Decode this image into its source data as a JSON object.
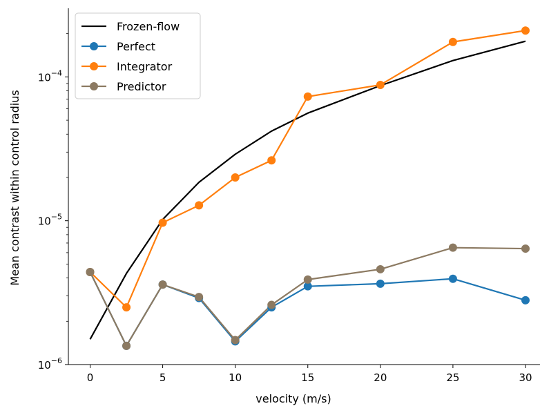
{
  "chart_data": {
    "type": "line",
    "xlabel": "velocity (m/s)",
    "ylabel": "Mean contrast within control radius",
    "xlim": [
      -1.5,
      31
    ],
    "ylim": [
      1e-06,
      0.0003
    ],
    "yscale": "log",
    "x_ticks": [
      0,
      5,
      10,
      15,
      20,
      25,
      30
    ],
    "x_tick_labels": [
      "0",
      "5",
      "10",
      "15",
      "20",
      "25",
      "30"
    ],
    "y_ticks": [
      {
        "value": 1e-06,
        "base": "10",
        "exp": "−6"
      },
      {
        "value": 1e-05,
        "base": "10",
        "exp": "−5"
      },
      {
        "value": 0.0001,
        "base": "10",
        "exp": "−4"
      }
    ],
    "grid": false,
    "legend_position": "upper-left",
    "series": [
      {
        "name": "Frozen-flow",
        "color": "#000000",
        "marker": false,
        "x": [
          0,
          2.5,
          5,
          7.5,
          10,
          12.5,
          15,
          20,
          25,
          30
        ],
        "y": [
          1.5e-06,
          4.3e-06,
          1.02e-05,
          1.85e-05,
          2.9e-05,
          4.2e-05,
          5.6e-05,
          8.7e-05,
          0.00013,
          0.000177
        ]
      },
      {
        "name": "Perfect",
        "color": "#1f77b4",
        "marker": true,
        "x": [
          0,
          2.5,
          5,
          7.5,
          10,
          12.5,
          15,
          20,
          25,
          30
        ],
        "y": [
          4.4e-06,
          1.35e-06,
          3.6e-06,
          2.9e-06,
          1.45e-06,
          2.5e-06,
          3.5e-06,
          3.65e-06,
          3.95e-06,
          2.8e-06
        ]
      },
      {
        "name": "Integrator",
        "color": "#ff7f0e",
        "marker": true,
        "x": [
          0,
          2.5,
          5,
          7.5,
          10,
          12.5,
          15,
          20,
          25,
          30
        ],
        "y": [
          4.4e-06,
          2.5e-06,
          9.7e-06,
          1.28e-05,
          2e-05,
          2.63e-05,
          7.3e-05,
          8.8e-05,
          0.000175,
          0.00021
        ]
      },
      {
        "name": "Predictor",
        "color": "#8c7a62",
        "marker": true,
        "x": [
          0,
          2.5,
          5,
          7.5,
          10,
          12.5,
          15,
          20,
          25,
          30
        ],
        "y": [
          4.4e-06,
          1.35e-06,
          3.6e-06,
          2.95e-06,
          1.48e-06,
          2.6e-06,
          3.9e-06,
          4.6e-06,
          6.5e-06,
          6.4e-06
        ]
      }
    ]
  }
}
